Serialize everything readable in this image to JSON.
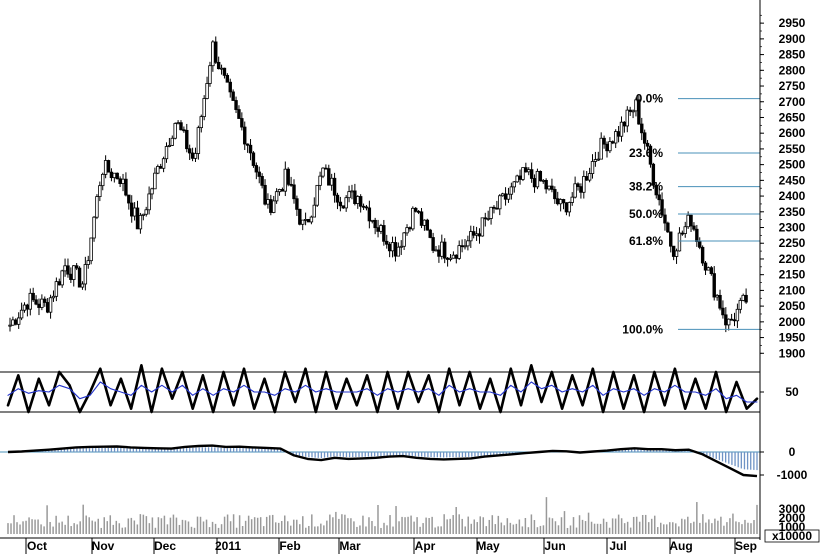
{
  "chart_data": [
    {
      "type": "candlestick",
      "title": "",
      "x_tick_labels": [
        "Oct",
        "Nov",
        "Dec",
        "2011",
        "Feb",
        "Mar",
        "Apr",
        "May",
        "Jun",
        "Jul",
        "Aug",
        "Sep"
      ],
      "y_ticks": [
        1900,
        1950,
        2000,
        2050,
        2100,
        2150,
        2200,
        2250,
        2300,
        2350,
        2400,
        2450,
        2500,
        2550,
        2600,
        2650,
        2700,
        2750,
        2800,
        2850,
        2900,
        2950
      ],
      "y_tick_labels": [
        "1900",
        "1950",
        "2000",
        "2050",
        "2100",
        "2150",
        "2200",
        "2250",
        "2300",
        "2350",
        "2400",
        "2450",
        "2500",
        "2550",
        "2600",
        "2650",
        "2700",
        "2750",
        "2800",
        "2850",
        "2900",
        "2950"
      ],
      "ylim": [
        1885,
        2995
      ],
      "price_path": [
        [
          "Oct",
          1990
        ],
        [
          "Oct",
          2070
        ],
        [
          "Oct",
          2050
        ],
        [
          "Oct",
          2180
        ],
        [
          "Nov",
          2120
        ],
        [
          "Nov",
          2490
        ],
        [
          "Nov",
          2460
        ],
        [
          "Nov",
          2300
        ],
        [
          "Dec",
          2480
        ],
        [
          "Dec",
          2640
        ],
        [
          "Dec",
          2510
        ],
        [
          "Dec",
          2880
        ],
        [
          "2011",
          2700
        ],
        [
          "2011",
          2560
        ],
        [
          "Feb",
          2360
        ],
        [
          "Feb",
          2460
        ],
        [
          "Feb",
          2290
        ],
        [
          "Feb",
          2480
        ],
        [
          "Mar",
          2390
        ],
        [
          "Mar",
          2400
        ],
        [
          "Mar",
          2300
        ],
        [
          "Mar",
          2230
        ],
        [
          "Apr",
          2360
        ],
        [
          "Apr",
          2240
        ],
        [
          "Apr",
          2220
        ],
        [
          "May",
          2260
        ],
        [
          "May",
          2330
        ],
        [
          "May",
          2400
        ],
        [
          "Jun",
          2470
        ],
        [
          "Jun",
          2440
        ],
        [
          "Jun",
          2360
        ],
        [
          "Jul",
          2430
        ],
        [
          "Jul",
          2550
        ],
        [
          "Jul",
          2600
        ],
        [
          "Jul",
          2690
        ],
        [
          "Aug",
          2450
        ],
        [
          "Aug",
          2230
        ],
        [
          "Aug",
          2330
        ],
        [
          "Aug",
          2150
        ],
        [
          "Sep",
          1990
        ],
        [
          "Sep",
          2070
        ]
      ],
      "fibonacci": {
        "high": 2710,
        "low": 1976,
        "levels": [
          {
            "label": "0.0%",
            "value": 2710
          },
          {
            "label": "23.6%",
            "value": 2537
          },
          {
            "label": "38.2%",
            "value": 2430
          },
          {
            "label": "50.0%",
            "value": 2343
          },
          {
            "label": "61.8%",
            "value": 2257
          },
          {
            "label": "100.0%",
            "value": 1976
          }
        ]
      },
      "colors": {
        "candles": "#000000",
        "fib_lines": "#4a90b8",
        "axis": "#000000"
      }
    },
    {
      "type": "line",
      "name": "stochastic",
      "y_ticks": [
        50
      ],
      "y_tick_labels": [
        "50"
      ],
      "ylim": [
        0,
        100
      ],
      "horizontal_lines": [
        80,
        20
      ],
      "series": [
        {
          "color": "#000000",
          "values": [
            30,
            75,
            20,
            70,
            30,
            80,
            60,
            20,
            50,
            85,
            30,
            70,
            25,
            90,
            20,
            85,
            40,
            80,
            25,
            75,
            20,
            80,
            30,
            85,
            25,
            70,
            20,
            80,
            35,
            85,
            20,
            80,
            25,
            70,
            30,
            75,
            20,
            80,
            25,
            80,
            35,
            75,
            20,
            85,
            30,
            80,
            25,
            70,
            20,
            85,
            30,
            90,
            35,
            80,
            25,
            75,
            30,
            85,
            20,
            80,
            25,
            75,
            20,
            80,
            30,
            85,
            25,
            70,
            25,
            80,
            20,
            65,
            25,
            40
          ]
        },
        {
          "color": "#2233cc",
          "values": [
            45,
            55,
            48,
            52,
            50,
            60,
            55,
            40,
            45,
            65,
            55,
            50,
            45,
            60,
            50,
            60,
            50,
            60,
            45,
            55,
            45,
            55,
            50,
            60,
            50,
            50,
            45,
            55,
            50,
            60,
            50,
            55,
            50,
            50,
            50,
            55,
            45,
            55,
            50,
            55,
            50,
            55,
            45,
            60,
            50,
            55,
            50,
            50,
            45,
            60,
            50,
            65,
            55,
            60,
            50,
            55,
            50,
            60,
            45,
            55,
            50,
            55,
            45,
            55,
            50,
            60,
            50,
            50,
            45,
            55,
            40,
            45,
            35,
            35
          ]
        }
      ]
    },
    {
      "type": "line+histogram",
      "name": "macd",
      "y_ticks": [
        0,
        -1000
      ],
      "y_tick_labels": [
        "0",
        "-1000"
      ],
      "ylim": [
        -1150,
        450
      ],
      "colors": {
        "line": "#000000",
        "histogram": "#6f93c5",
        "zero_line": "#4a90b8"
      },
      "line_values": [
        0,
        20,
        60,
        100,
        150,
        200,
        220,
        230,
        240,
        200,
        180,
        160,
        150,
        220,
        260,
        280,
        220,
        230,
        200,
        180,
        150,
        -150,
        -300,
        -350,
        -250,
        -300,
        -280,
        -250,
        -200,
        -180,
        -250,
        -300,
        -320,
        -300,
        -280,
        -200,
        -150,
        -100,
        -50,
        0,
        50,
        30,
        -20,
        20,
        60,
        120,
        160,
        120,
        120,
        80,
        100,
        -100,
        -400,
        -700,
        -1000,
        -1050
      ]
    },
    {
      "type": "bar",
      "name": "volume",
      "y_tick_labels": [
        "3000",
        "2000",
        "1000",
        "x10000"
      ],
      "color": "#999999"
    }
  ]
}
